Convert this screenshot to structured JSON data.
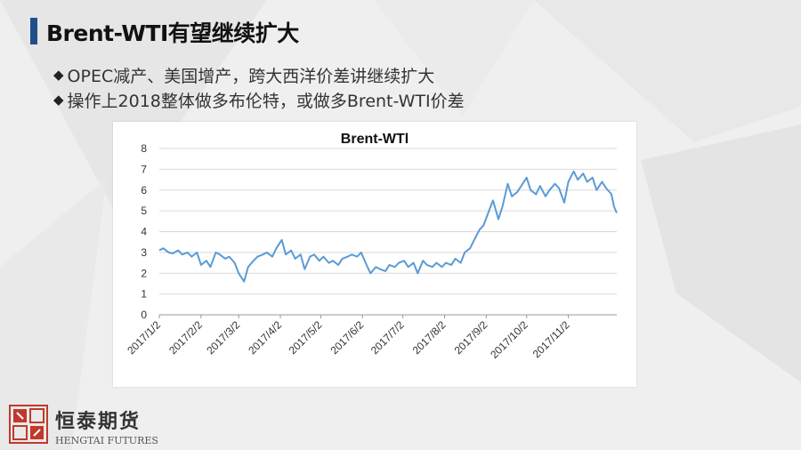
{
  "slide": {
    "title": "Brent-WTI有望继续扩大",
    "bullets": [
      "OPEC减产、美国增产，跨大西洋价差讲继续扩大",
      "操作上2018整体做多布伦特，或做多Brent-WTI价差"
    ],
    "bullet_icon": "diamond-bullet-icon"
  },
  "footer": {
    "logo_icon": "hengtai-seal-logo-icon",
    "company_cn": "恒泰期货",
    "company_en": "HENGTAI FUTURES"
  },
  "colors": {
    "line": "#5b9bd5",
    "title_bar": "#1f4e8c",
    "logo_red": "#c0392b"
  },
  "chart_data": {
    "type": "line",
    "title": "Brent-WTl",
    "xlabel": "",
    "ylabel": "",
    "ylim": [
      0,
      8
    ],
    "yticks": [
      0,
      1,
      2,
      3,
      4,
      5,
      6,
      7,
      8
    ],
    "grid": "horizontal",
    "legend": "none",
    "x_range": [
      "2017/1/2",
      "2017/12/8"
    ],
    "xticks": [
      "2017/1/2",
      "2017/2/2",
      "2017/3/2",
      "2017/4/2",
      "2017/5/2",
      "2017/6/2",
      "2017/7/2",
      "2017/8/2",
      "2017/9/2",
      "2017/10/2",
      "2017/11/2"
    ],
    "series": [
      {
        "values": [
          [
            "2017/1/2",
            3.1
          ],
          [
            "2017/1/5",
            3.2
          ],
          [
            "2017/1/9",
            3.0
          ],
          [
            "2017/1/12",
            2.95
          ],
          [
            "2017/1/16",
            3.1
          ],
          [
            "2017/1/19",
            2.9
          ],
          [
            "2017/1/23",
            3.0
          ],
          [
            "2017/1/26",
            2.8
          ],
          [
            "2017/1/30",
            3.0
          ],
          [
            "2017/2/2",
            2.4
          ],
          [
            "2017/2/6",
            2.6
          ],
          [
            "2017/2/9",
            2.3
          ],
          [
            "2017/2/13",
            3.0
          ],
          [
            "2017/2/16",
            2.9
          ],
          [
            "2017/2/20",
            2.7
          ],
          [
            "2017/2/23",
            2.8
          ],
          [
            "2017/2/27",
            2.5
          ],
          [
            "2017/3/2",
            2.0
          ],
          [
            "2017/3/6",
            1.6
          ],
          [
            "2017/3/9",
            2.3
          ],
          [
            "2017/3/13",
            2.6
          ],
          [
            "2017/3/16",
            2.8
          ],
          [
            "2017/3/20",
            2.9
          ],
          [
            "2017/3/23",
            3.0
          ],
          [
            "2017/3/27",
            2.8
          ],
          [
            "2017/3/30",
            3.2
          ],
          [
            "2017/4/3",
            3.6
          ],
          [
            "2017/4/6",
            2.9
          ],
          [
            "2017/4/10",
            3.1
          ],
          [
            "2017/4/13",
            2.7
          ],
          [
            "2017/4/17",
            2.9
          ],
          [
            "2017/4/20",
            2.2
          ],
          [
            "2017/4/24",
            2.8
          ],
          [
            "2017/4/27",
            2.9
          ],
          [
            "2017/5/1",
            2.6
          ],
          [
            "2017/5/4",
            2.8
          ],
          [
            "2017/5/8",
            2.5
          ],
          [
            "2017/5/11",
            2.6
          ],
          [
            "2017/5/15",
            2.4
          ],
          [
            "2017/5/18",
            2.7
          ],
          [
            "2017/5/22",
            2.8
          ],
          [
            "2017/5/25",
            2.9
          ],
          [
            "2017/5/29",
            2.8
          ],
          [
            "2017/6/1",
            3.0
          ],
          [
            "2017/6/5",
            2.4
          ],
          [
            "2017/6/8",
            2.0
          ],
          [
            "2017/6/12",
            2.3
          ],
          [
            "2017/6/15",
            2.2
          ],
          [
            "2017/6/19",
            2.1
          ],
          [
            "2017/6/22",
            2.4
          ],
          [
            "2017/6/26",
            2.3
          ],
          [
            "2017/6/29",
            2.5
          ],
          [
            "2017/7/3",
            2.6
          ],
          [
            "2017/7/6",
            2.3
          ],
          [
            "2017/7/10",
            2.5
          ],
          [
            "2017/7/13",
            2.0
          ],
          [
            "2017/7/17",
            2.6
          ],
          [
            "2017/7/20",
            2.4
          ],
          [
            "2017/7/24",
            2.3
          ],
          [
            "2017/7/27",
            2.5
          ],
          [
            "2017/7/31",
            2.3
          ],
          [
            "2017/8/3",
            2.5
          ],
          [
            "2017/8/7",
            2.4
          ],
          [
            "2017/8/10",
            2.7
          ],
          [
            "2017/8/14",
            2.5
          ],
          [
            "2017/8/17",
            3.0
          ],
          [
            "2017/8/21",
            3.2
          ],
          [
            "2017/8/24",
            3.6
          ],
          [
            "2017/8/28",
            4.1
          ],
          [
            "2017/8/31",
            4.3
          ],
          [
            "2017/9/4",
            5.0
          ],
          [
            "2017/9/7",
            5.5
          ],
          [
            "2017/9/11",
            4.6
          ],
          [
            "2017/9/14",
            5.2
          ],
          [
            "2017/9/18",
            6.3
          ],
          [
            "2017/9/21",
            5.7
          ],
          [
            "2017/9/25",
            5.9
          ],
          [
            "2017/9/28",
            6.2
          ],
          [
            "2017/10/2",
            6.6
          ],
          [
            "2017/10/5",
            6.0
          ],
          [
            "2017/10/9",
            5.8
          ],
          [
            "2017/10/12",
            6.2
          ],
          [
            "2017/10/16",
            5.7
          ],
          [
            "2017/10/19",
            6.0
          ],
          [
            "2017/10/23",
            6.3
          ],
          [
            "2017/10/26",
            6.1
          ],
          [
            "2017/10/30",
            5.4
          ],
          [
            "2017/11/2",
            6.4
          ],
          [
            "2017/11/6",
            6.9
          ],
          [
            "2017/11/9",
            6.5
          ],
          [
            "2017/11/13",
            6.8
          ],
          [
            "2017/11/16",
            6.4
          ],
          [
            "2017/11/20",
            6.6
          ],
          [
            "2017/11/23",
            6.0
          ],
          [
            "2017/11/27",
            6.4
          ],
          [
            "2017/11/30",
            6.1
          ],
          [
            "2017/12/4",
            5.8
          ],
          [
            "2017/12/6",
            5.2
          ],
          [
            "2017/12/8",
            4.9
          ]
        ]
      }
    ]
  }
}
